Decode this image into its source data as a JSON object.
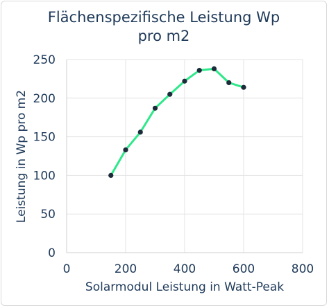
{
  "chart_data": {
    "type": "line",
    "title_lines": [
      "Flächenspezifische Leistung Wp",
      "pro m2"
    ],
    "xlabel": "Solarmodul Leistung in Watt-Peak",
    "ylabel": "Leistung in Wp pro m2",
    "xlim": [
      0,
      800
    ],
    "ylim": [
      0,
      250
    ],
    "x_ticks": [
      0,
      200,
      400,
      600,
      800
    ],
    "y_ticks": [
      0,
      50,
      100,
      150,
      200,
      250
    ],
    "grid": true,
    "legend": "none",
    "series": [
      {
        "x": [
          150,
          200,
          250,
          300,
          350,
          400,
          450,
          500,
          550,
          600
        ],
        "y": [
          100,
          133,
          156,
          187,
          205,
          222,
          236,
          238,
          220,
          214
        ],
        "line_color": "#2ee88a",
        "marker_color": "#1c2b3a"
      }
    ]
  },
  "colors": {
    "text": "#1f3a5a",
    "grid": "#e3e3e3"
  }
}
